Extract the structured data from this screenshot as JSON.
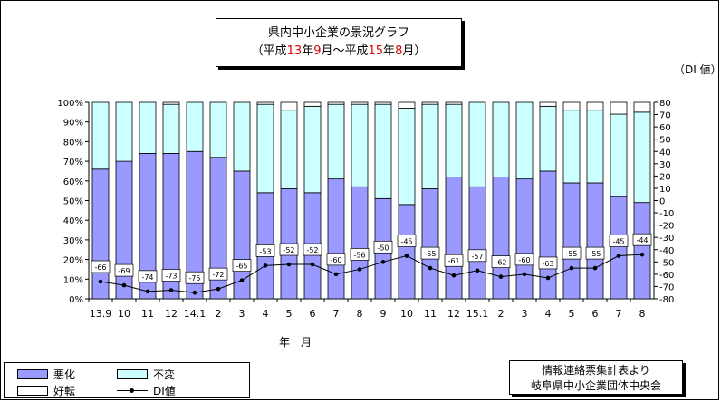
{
  "title": {
    "line1": "県内中小企業の景況グラフ",
    "line2_parts": [
      "（平成",
      "13",
      "年",
      "9",
      "月～平成",
      "15",
      "年",
      "8",
      "月）"
    ]
  },
  "di_unit": "（DI 値）",
  "xaxis_title": "年　月",
  "legend": {
    "worse": "悪化",
    "unchanged": "不変",
    "better": "好転",
    "di": "DI値"
  },
  "source": {
    "line1": "情報連絡票集計表より",
    "line2": "岐阜県中小企業団体中央会"
  },
  "colors": {
    "worse": "#9999ff",
    "unchanged": "#ccffff",
    "better": "#ffffff",
    "title_highlight": "#e00000"
  },
  "chart_data": {
    "type": "bar",
    "stacked": true,
    "categories": [
      "13.9",
      "10",
      "11",
      "12",
      "14.1",
      "2",
      "3",
      "4",
      "5",
      "6",
      "7",
      "8",
      "9",
      "10",
      "11",
      "12",
      "15.1",
      "2",
      "3",
      "4",
      "5",
      "6",
      "7",
      "8"
    ],
    "left_axis": {
      "ylim": [
        0,
        100
      ],
      "ticks": [
        "0%",
        "10%",
        "20%",
        "30%",
        "40%",
        "50%",
        "60%",
        "70%",
        "80%",
        "90%",
        "100%"
      ]
    },
    "right_axis": {
      "ylim": [
        -80,
        80
      ],
      "ticks": [
        "-80",
        "-70",
        "-60",
        "-50",
        "-40",
        "-30",
        "-20",
        "-10",
        "0",
        "10",
        "20",
        "30",
        "40",
        "50",
        "60",
        "70",
        "80"
      ]
    },
    "series": [
      {
        "name": "悪化",
        "values": [
          66,
          70,
          74,
          74,
          75,
          72,
          65,
          54,
          56,
          54,
          61,
          57,
          51,
          48,
          56,
          62,
          57,
          62,
          61,
          65,
          59,
          59,
          52,
          49
        ]
      },
      {
        "name": "不変",
        "values": [
          34,
          30,
          26,
          25,
          25,
          28,
          35,
          45,
          40,
          44,
          38,
          42,
          48,
          49,
          43,
          37,
          43,
          38,
          39,
          33,
          37,
          37,
          42,
          46
        ]
      },
      {
        "name": "好転",
        "values": [
          0,
          0,
          0,
          1,
          0,
          0,
          0,
          1,
          4,
          2,
          1,
          1,
          1,
          3,
          1,
          1,
          0,
          0,
          0,
          2,
          4,
          4,
          6,
          5
        ]
      }
    ],
    "di_series": {
      "name": "DI値",
      "values": [
        -66,
        -69,
        -74,
        -73,
        -75,
        -72,
        -65,
        -53,
        -52,
        -52,
        -60,
        -56,
        -50,
        -45,
        -55,
        -61,
        -57,
        -62,
        -60,
        -63,
        -55,
        -55,
        -45,
        -44
      ]
    },
    "grid": false,
    "legend_placement": "bottom-left"
  }
}
